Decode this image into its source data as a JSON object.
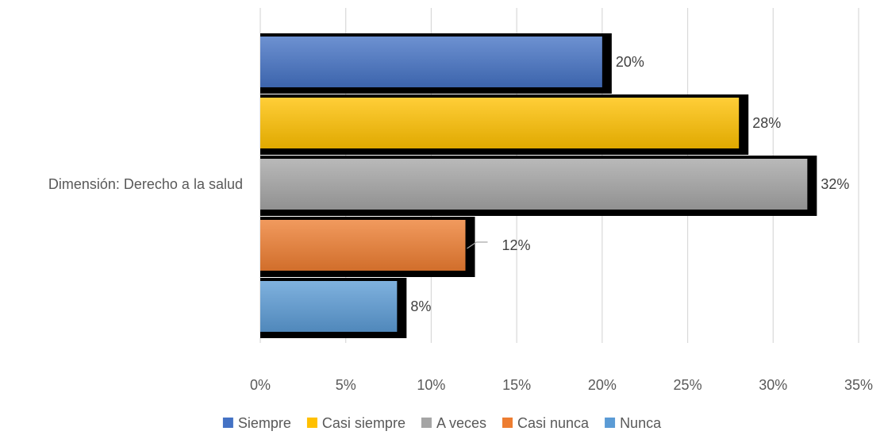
{
  "chart_data": {
    "type": "bar",
    "orientation": "horizontal",
    "categories": [
      "Dimensión: Derecho a la salud"
    ],
    "series": [
      {
        "name": "Siempre",
        "values": [
          20
        ],
        "label": "20%",
        "color": "#4472C4"
      },
      {
        "name": "Casi siempre",
        "values": [
          28
        ],
        "label": "28%",
        "color": "#FFC000"
      },
      {
        "name": "A veces",
        "values": [
          32
        ],
        "label": "32%",
        "color": "#A5A5A5"
      },
      {
        "name": "Casi nunca",
        "values": [
          12
        ],
        "label": "12%",
        "color": "#ED7D31"
      },
      {
        "name": "Nunca",
        "values": [
          8
        ],
        "label": "8%",
        "color": "#5B9BD5"
      }
    ],
    "xticks": [
      "0%",
      "5%",
      "10%",
      "15%",
      "20%",
      "25%",
      "30%",
      "35%"
    ],
    "xlim": [
      0,
      35
    ],
    "grid": true,
    "legend_position": "bottom",
    "title": "",
    "xlabel": "",
    "ylabel": ""
  }
}
